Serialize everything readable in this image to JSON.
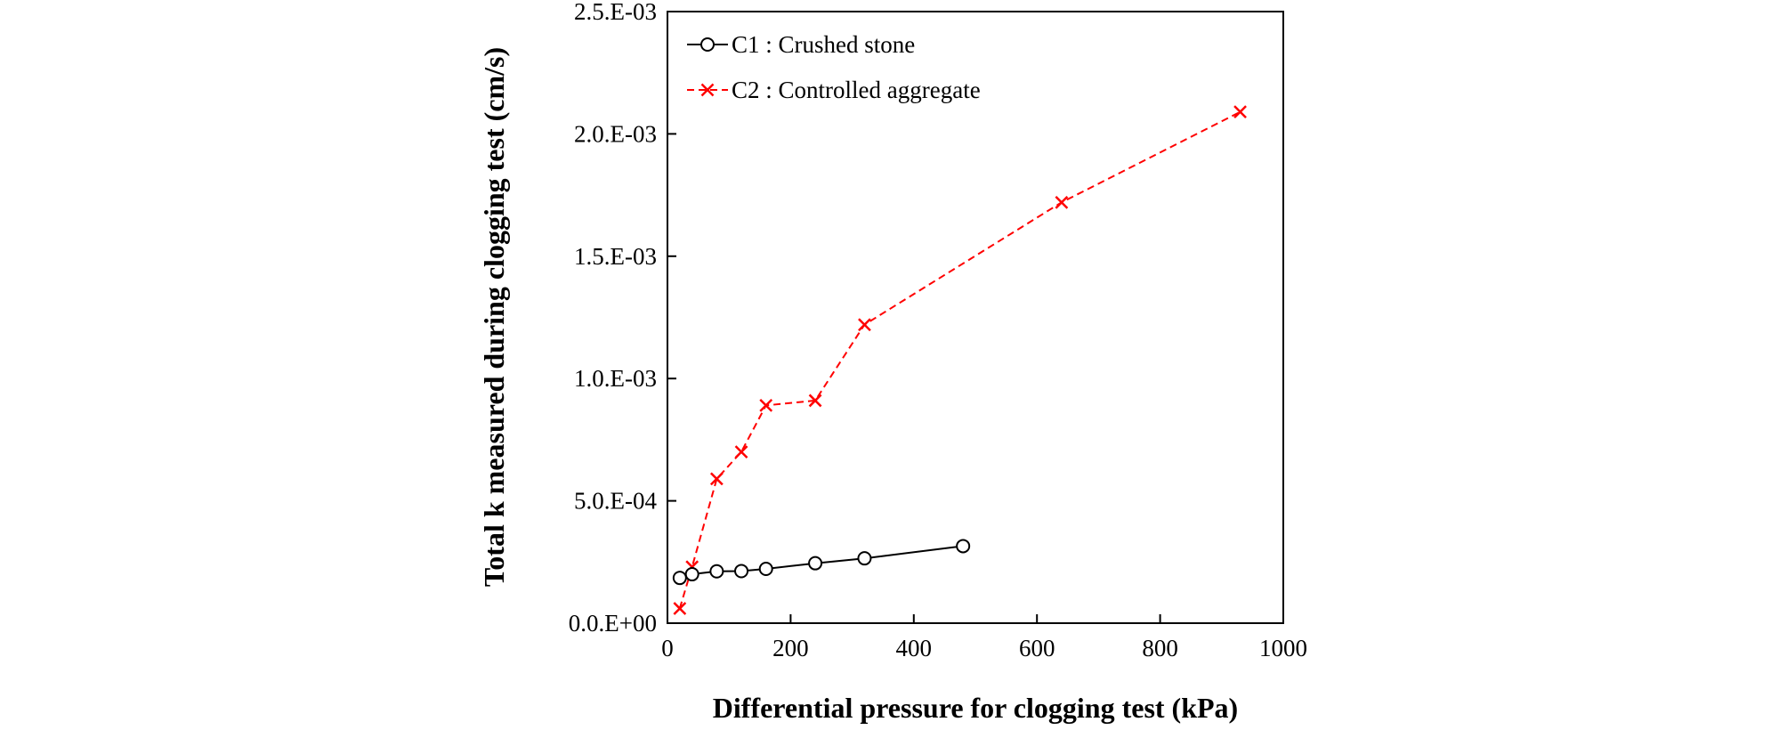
{
  "chart_data": {
    "type": "line",
    "xlabel": "Differential pressure  for clogging test (kPa)",
    "ylabel": "Total k measured during clogging test (cm/s)",
    "xlim": [
      0,
      1000
    ],
    "ylim": [
      0,
      0.0025
    ],
    "xticks": [
      "0",
      "200",
      "400",
      "600",
      "800",
      "1000"
    ],
    "yticks": [
      "0.0.E+00",
      "5.0.E-04",
      "1.0.E-03",
      "1.5.E-03",
      "2.0.E-03",
      "2.5.E-03"
    ],
    "grid": false,
    "legend_position": "top-left",
    "series": [
      {
        "name": "C1 : Crushed stone",
        "color": "#000000",
        "line_style": "solid",
        "marker": "circle",
        "x": [
          20,
          40,
          80,
          120,
          160,
          240,
          320,
          480
        ],
        "y": [
          0.000185,
          0.0002,
          0.000212,
          0.000213,
          0.000222,
          0.000245,
          0.000265,
          0.000315
        ]
      },
      {
        "name": "C2 : Controlled aggregate",
        "color": "#ff0000",
        "line_style": "dashed",
        "marker": "x",
        "x": [
          20,
          40,
          80,
          120,
          160,
          240,
          320,
          640,
          930
        ],
        "y": [
          6e-05,
          0.00023,
          0.00059,
          0.0007,
          0.00089,
          0.00091,
          0.00122,
          0.00172,
          0.00209
        ]
      }
    ]
  }
}
